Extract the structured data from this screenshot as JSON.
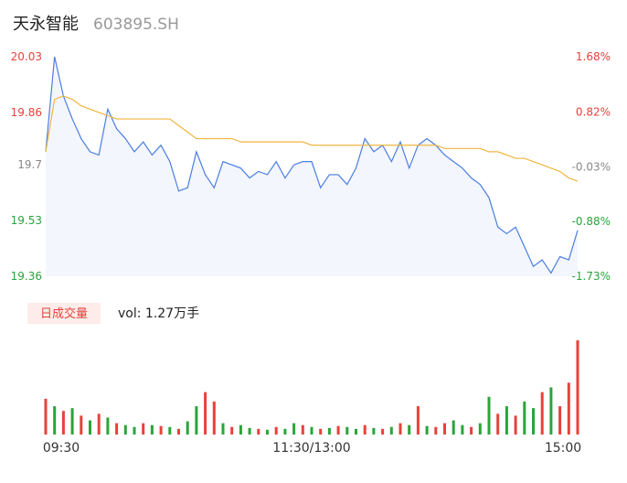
{
  "chart_data": {
    "type": "line",
    "title": "天永智能",
    "subtitle": "603895.SH",
    "xlim": [
      0,
      60
    ],
    "xticks": [
      {
        "value": 0,
        "label": "09:30"
      },
      {
        "value": 30,
        "label": "11:30/13:00"
      },
      {
        "value": 60,
        "label": "15:00"
      }
    ],
    "ylim": [
      19.36,
      20.03
    ],
    "yticks": [
      20.03,
      19.86,
      19.7,
      19.53,
      19.36
    ],
    "y2lim": [
      -1.73,
      1.68
    ],
    "y2ticks": [
      {
        "value": 1.68,
        "label": "1.68%"
      },
      {
        "value": 0.82,
        "label": "0.82%"
      },
      {
        "value": -0.03,
        "label": "-0.03%"
      },
      {
        "value": -0.88,
        "label": "-0.88%"
      },
      {
        "value": -1.73,
        "label": "-1.73%"
      }
    ],
    "tick_colors": [
      "#e8413b",
      "#e8413b",
      "#888888",
      "#2aa43b",
      "#2aa43b"
    ],
    "series": [
      {
        "color": "#4a7ee0",
        "values": [
          19.74,
          20.03,
          19.91,
          19.84,
          19.78,
          19.74,
          19.73,
          19.87,
          19.81,
          19.78,
          19.74,
          19.77,
          19.73,
          19.76,
          19.71,
          19.62,
          19.63,
          19.74,
          19.67,
          19.63,
          19.71,
          19.7,
          19.69,
          19.66,
          19.68,
          19.67,
          19.71,
          19.66,
          19.7,
          19.71,
          19.71,
          19.63,
          19.67,
          19.67,
          19.64,
          19.69,
          19.78,
          19.74,
          19.76,
          19.71,
          19.77,
          19.69,
          19.76,
          19.78,
          19.76,
          19.73,
          19.71,
          19.69,
          19.66,
          19.64,
          19.6,
          19.51,
          19.49,
          19.51,
          19.45,
          19.39,
          19.41,
          19.37,
          19.42,
          19.41,
          19.5
        ]
      },
      {
        "color": "#f0b540",
        "values": [
          19.74,
          19.9,
          19.91,
          19.9,
          19.88,
          19.87,
          19.86,
          19.85,
          19.84,
          19.84,
          19.84,
          19.84,
          19.84,
          19.84,
          19.84,
          19.82,
          19.8,
          19.78,
          19.78,
          19.78,
          19.78,
          19.78,
          19.77,
          19.77,
          19.77,
          19.77,
          19.77,
          19.77,
          19.77,
          19.77,
          19.76,
          19.76,
          19.76,
          19.76,
          19.76,
          19.76,
          19.76,
          19.76,
          19.76,
          19.76,
          19.76,
          19.76,
          19.76,
          19.76,
          19.76,
          19.75,
          19.75,
          19.75,
          19.75,
          19.75,
          19.74,
          19.74,
          19.73,
          19.72,
          19.72,
          19.71,
          19.7,
          19.69,
          19.68,
          19.66,
          19.65
        ]
      }
    ],
    "volume_label": "日成交量",
    "volume_text": "vol: 1.27万手",
    "volume": [
      38,
      30,
      25,
      28,
      20,
      15,
      22,
      18,
      12,
      10,
      8,
      12,
      10,
      9,
      8,
      6,
      14,
      30,
      45,
      35,
      12,
      8,
      10,
      7,
      6,
      5,
      8,
      6,
      12,
      10,
      8,
      6,
      7,
      9,
      8,
      6,
      10,
      7,
      6,
      8,
      12,
      10,
      30,
      9,
      8,
      12,
      15,
      10,
      8,
      12,
      40,
      22,
      30,
      20,
      35,
      28,
      45,
      50,
      30,
      55,
      100
    ],
    "volume_colors": [
      "#e8413b",
      "#2aa43b",
      "#e8413b",
      "#2aa43b",
      "#e8413b",
      "#2aa43b",
      "#e8413b",
      "#2aa43b",
      "#e8413b",
      "#2aa43b",
      "#2aa43b",
      "#e8413b",
      "#2aa43b",
      "#e8413b",
      "#2aa43b",
      "#e8413b",
      "#2aa43b",
      "#2aa43b",
      "#e8413b",
      "#e8413b",
      "#2aa43b",
      "#e8413b",
      "#2aa43b",
      "#2aa43b",
      "#e8413b",
      "#2aa43b",
      "#e8413b",
      "#2aa43b",
      "#2aa43b",
      "#e8413b",
      "#2aa43b",
      "#e8413b",
      "#2aa43b",
      "#e8413b",
      "#2aa43b",
      "#2aa43b",
      "#e8413b",
      "#2aa43b",
      "#e8413b",
      "#2aa43b",
      "#e8413b",
      "#2aa43b",
      "#e8413b",
      "#2aa43b",
      "#e8413b",
      "#e8413b",
      "#2aa43b",
      "#2aa43b",
      "#e8413b",
      "#2aa43b",
      "#2aa43b",
      "#e8413b",
      "#2aa43b",
      "#e8413b",
      "#2aa43b",
      "#2aa43b",
      "#e8413b",
      "#2aa43b",
      "#e8413b",
      "#e8413b",
      "#e8413b"
    ]
  }
}
